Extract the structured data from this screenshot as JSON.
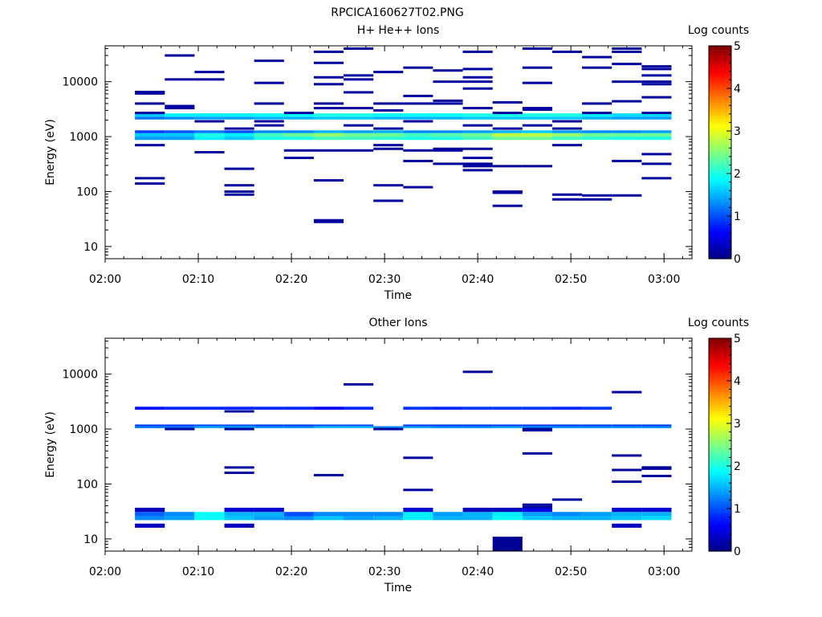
{
  "figure_title": "RPCICA160627T02.PNG",
  "colorbar_ticks": [
    "0",
    "1",
    "2",
    "3",
    "4",
    "5"
  ],
  "chart_data": [
    {
      "type": "heatmap",
      "title": "H+ He++ Ions",
      "xlabel": "Time",
      "ylabel": "Energy (eV)",
      "colorbar_label": "Log counts",
      "color_scale": "jet",
      "clim": [
        0,
        5
      ],
      "xlim": [
        "02:00",
        "03:03"
      ],
      "ylim": [
        6,
        45000
      ],
      "yscale": "log",
      "x_ticks": [
        "02:00",
        "02:10",
        "02:20",
        "02:30",
        "02:40",
        "02:50",
        "03:00"
      ],
      "y_ticks": [
        "10",
        "100",
        "1000",
        "10000"
      ],
      "time_bins": [
        [
          "02:03:12",
          "02:06:24"
        ],
        [
          "02:06:24",
          "02:09:36"
        ],
        [
          "02:09:36",
          "02:12:48"
        ],
        [
          "02:12:48",
          "02:16:00"
        ],
        [
          "02:16:00",
          "02:19:12"
        ],
        [
          "02:19:12",
          "02:22:24"
        ],
        [
          "02:22:24",
          "02:25:36"
        ],
        [
          "02:25:36",
          "02:28:48"
        ],
        [
          "02:28:48",
          "02:32:00"
        ],
        [
          "02:32:00",
          "02:35:12"
        ],
        [
          "02:35:12",
          "02:38:24"
        ],
        [
          "02:38:24",
          "02:41:36"
        ],
        [
          "02:41:36",
          "02:44:48"
        ],
        [
          "02:44:48",
          "02:48:00"
        ],
        [
          "02:48:00",
          "02:51:12"
        ],
        [
          "02:51:12",
          "02:54:24"
        ],
        [
          "02:54:24",
          "02:57:36"
        ],
        [
          "02:57:36",
          "03:00:48"
        ]
      ],
      "bands": [
        {
          "energy_min": 870,
          "energy_max": 1000,
          "values": [
            1.4,
            1.4,
            1.8,
            1.6,
            2.0,
            2.0,
            2.2,
            2.2,
            2.1,
            2.0,
            2.0,
            2.2,
            2.4,
            2.4,
            2.2,
            2.1,
            2.0,
            2.0
          ]
        },
        {
          "energy_min": 1000,
          "energy_max": 1160,
          "values": [
            1.6,
            1.6,
            2.0,
            1.8,
            2.2,
            2.4,
            2.6,
            2.4,
            2.4,
            2.2,
            2.3,
            2.4,
            2.8,
            2.8,
            2.6,
            2.4,
            2.4,
            2.4
          ]
        },
        {
          "energy_min": 1160,
          "energy_max": 1300,
          "values": [
            0.9,
            1.0,
            1.2,
            1.0,
            1.3,
            1.3,
            1.5,
            1.4,
            1.5,
            1.3,
            1.3,
            1.4,
            1.5,
            1.6,
            1.4,
            1.3,
            1.3,
            1.4
          ]
        },
        {
          "energy_min": 2050,
          "energy_max": 2300,
          "values": [
            1.2,
            1.3,
            1.4,
            1.4,
            1.5,
            1.5,
            1.6,
            1.6,
            1.5,
            1.5,
            1.5,
            1.6,
            1.6,
            1.6,
            1.6,
            1.5,
            1.4,
            1.4
          ]
        },
        {
          "energy_min": 2300,
          "energy_max": 2650,
          "values": [
            1.6,
            1.8,
            1.8,
            1.8,
            1.9,
            1.9,
            2.0,
            2.0,
            1.9,
            1.9,
            1.9,
            2.0,
            2.0,
            2.0,
            2.0,
            1.8,
            1.7,
            1.7
          ]
        }
      ],
      "sparse_counts": [
        {
          "energy": 6500,
          "bins": [
            0
          ]
        },
        {
          "energy": 6100,
          "bins": [
            0
          ]
        },
        {
          "energy": 4000,
          "bins": [
            0,
            4,
            6,
            8,
            9,
            10,
            15
          ]
        },
        {
          "energy": 3300,
          "bins": [
            1,
            6,
            7,
            11,
            13
          ]
        },
        {
          "energy": 2700,
          "bins": [
            0,
            5,
            12,
            15,
            17
          ]
        },
        {
          "energy": 1900,
          "bins": [
            2,
            4,
            9,
            14
          ]
        },
        {
          "energy": 1600,
          "bins": [
            4,
            7,
            11,
            13
          ]
        },
        {
          "energy": 1400,
          "bins": [
            3,
            8,
            12,
            14
          ]
        },
        {
          "energy": 700,
          "bins": [
            0,
            8,
            14
          ]
        },
        {
          "energy": 600,
          "bins": [
            8,
            10,
            11
          ]
        },
        {
          "energy": 560,
          "bins": [
            5,
            6,
            7,
            9,
            10
          ]
        },
        {
          "energy": 520,
          "bins": [
            2
          ]
        },
        {
          "energy": 480,
          "bins": [
            17
          ]
        },
        {
          "energy": 410,
          "bins": [
            5,
            11
          ]
        },
        {
          "energy": 360,
          "bins": [
            9,
            16
          ]
        },
        {
          "energy": 320,
          "bins": [
            10,
            11,
            17
          ]
        },
        {
          "energy": 290,
          "bins": [
            11,
            12,
            13
          ]
        },
        {
          "energy": 260,
          "bins": [
            3
          ]
        },
        {
          "energy": 245,
          "bins": [
            11
          ]
        },
        {
          "energy": 175,
          "bins": [
            0,
            17
          ]
        },
        {
          "energy": 160,
          "bins": [
            6
          ]
        },
        {
          "energy": 140,
          "bins": [
            0
          ]
        },
        {
          "energy": 130,
          "bins": [
            3,
            8
          ]
        },
        {
          "energy": 120,
          "bins": [
            9
          ]
        },
        {
          "energy": 100,
          "bins": [
            3,
            12
          ]
        },
        {
          "energy": 95,
          "bins": [
            12
          ]
        },
        {
          "energy": 88,
          "bins": [
            3,
            14
          ]
        },
        {
          "energy": 85,
          "bins": [
            15,
            16
          ]
        },
        {
          "energy": 72,
          "bins": [
            14,
            15
          ]
        },
        {
          "energy": 68,
          "bins": [
            8
          ]
        },
        {
          "energy": 55,
          "bins": [
            12
          ]
        },
        {
          "energy": 30,
          "bins": [
            6
          ]
        },
        {
          "energy": 28,
          "bins": [
            6
          ]
        },
        {
          "energy": 40000,
          "bins": [
            7,
            13,
            16
          ]
        },
        {
          "energy": 35000,
          "bins": [
            6,
            11,
            14,
            16
          ]
        },
        {
          "energy": 30000,
          "bins": [
            1
          ]
        },
        {
          "energy": 28000,
          "bins": [
            15
          ]
        },
        {
          "energy": 24000,
          "bins": [
            4
          ]
        },
        {
          "energy": 22000,
          "bins": [
            6
          ]
        },
        {
          "energy": 21000,
          "bins": [
            16
          ]
        },
        {
          "energy": 19000,
          "bins": [
            17
          ]
        },
        {
          "energy": 18000,
          "bins": [
            9,
            13,
            15
          ]
        },
        {
          "energy": 17000,
          "bins": [
            11,
            17
          ]
        },
        {
          "energy": 16000,
          "bins": [
            10
          ]
        },
        {
          "energy": 15000,
          "bins": [
            2,
            8
          ]
        },
        {
          "energy": 13000,
          "bins": [
            7,
            17
          ]
        },
        {
          "energy": 12000,
          "bins": [
            6,
            11
          ]
        },
        {
          "energy": 11000,
          "bins": [
            1,
            2,
            7
          ]
        },
        {
          "energy": 10000,
          "bins": [
            10,
            11,
            16,
            17
          ]
        },
        {
          "energy": 9500,
          "bins": [
            4,
            13
          ]
        },
        {
          "energy": 9000,
          "bins": [
            6,
            17
          ]
        },
        {
          "energy": 7500,
          "bins": [
            11
          ]
        },
        {
          "energy": 6400,
          "bins": [
            7
          ]
        },
        {
          "energy": 5500,
          "bins": [
            9
          ]
        },
        {
          "energy": 5200,
          "bins": [
            17
          ]
        },
        {
          "energy": 4500,
          "bins": [
            10
          ]
        },
        {
          "energy": 4400,
          "bins": [
            16
          ]
        },
        {
          "energy": 4200,
          "bins": [
            12
          ]
        },
        {
          "energy": 3600,
          "bins": [
            1
          ]
        },
        {
          "energy": 3100,
          "bins": [
            13
          ]
        },
        {
          "energy": 3000,
          "bins": [
            8
          ]
        }
      ]
    },
    {
      "type": "heatmap",
      "title": "Other Ions",
      "xlabel": "Time",
      "ylabel": "Energy (eV)",
      "colorbar_label": "Log counts",
      "color_scale": "jet",
      "clim": [
        0,
        5
      ],
      "xlim": [
        "02:00",
        "03:03"
      ],
      "ylim": [
        6,
        45000
      ],
      "yscale": "log",
      "x_ticks": [
        "02:00",
        "02:10",
        "02:20",
        "02:30",
        "02:40",
        "02:50",
        "03:00"
      ],
      "y_ticks": [
        "10",
        "100",
        "1000",
        "10000"
      ],
      "bands": [
        {
          "energy_min": 1040,
          "energy_max": 1130,
          "values": [
            1.2,
            1.2,
            1.4,
            1.4,
            1.3,
            1.3,
            1.5,
            1.5,
            1.3,
            1.4,
            1.3,
            1.3,
            1.4,
            1.3,
            1.3,
            1.3,
            1.3,
            1.3
          ]
        },
        {
          "energy_min": 1130,
          "energy_max": 1210,
          "values": [
            0.9,
            0.9,
            1.0,
            1.0,
            0.9,
            0.9,
            1.0,
            1.0,
            0.0,
            0.9,
            0.9,
            0.9,
            0.9,
            0.9,
            0.9,
            0.9,
            0.9,
            0.9
          ]
        },
        {
          "energy_min": 2250,
          "energy_max": 2550,
          "values": [
            0.7,
            0.8,
            0.8,
            0.8,
            0.8,
            0.8,
            0.6,
            0.8,
            0.0,
            0.9,
            0.8,
            0.9,
            0.9,
            0.9,
            0.8,
            0.9,
            0.0,
            0.0
          ]
        },
        {
          "energy_min": 22,
          "energy_max": 26,
          "values": [
            1.3,
            1.4,
            1.9,
            1.6,
            1.4,
            1.3,
            1.6,
            1.4,
            1.5,
            1.8,
            1.5,
            1.5,
            1.9,
            1.6,
            1.5,
            1.5,
            1.6,
            1.7
          ]
        },
        {
          "energy_min": 26,
          "energy_max": 31,
          "values": [
            1.1,
            1.3,
            1.9,
            1.5,
            1.5,
            1.0,
            1.3,
            1.3,
            1.3,
            1.8,
            1.4,
            1.5,
            1.8,
            1.4,
            1.3,
            1.4,
            1.5,
            1.5
          ]
        },
        {
          "energy_min": 31,
          "energy_max": 37,
          "values": [
            0.3,
            0.0,
            0.0,
            0.4,
            0.4,
            0.0,
            0.0,
            0.0,
            0.0,
            0.4,
            0.0,
            0.3,
            0.3,
            0.5,
            0.0,
            0.0,
            0.4,
            0.4
          ]
        },
        {
          "energy_min": 16,
          "energy_max": 19,
          "values": [
            0.3,
            0.0,
            0.0,
            0.3,
            0.0,
            0.0,
            0.0,
            0.0,
            0.0,
            0.0,
            0.0,
            0.0,
            0.0,
            0.0,
            0.0,
            0.0,
            0.3,
            0.0
          ]
        }
      ],
      "sparse_counts": [
        {
          "energy": 11000,
          "bins": [
            11
          ]
        },
        {
          "energy": 6500,
          "bins": [
            7
          ]
        },
        {
          "energy": 4700,
          "bins": [
            16
          ]
        },
        {
          "energy": 2100,
          "bins": [
            3
          ]
        },
        {
          "energy": 1000,
          "bins": [
            1,
            3,
            8,
            13
          ]
        },
        {
          "energy": 950,
          "bins": [
            13
          ]
        },
        {
          "energy": 360,
          "bins": [
            13
          ]
        },
        {
          "energy": 330,
          "bins": [
            16
          ]
        },
        {
          "energy": 300,
          "bins": [
            9
          ]
        },
        {
          "energy": 200,
          "bins": [
            3,
            17
          ]
        },
        {
          "energy": 190,
          "bins": [
            17
          ]
        },
        {
          "energy": 180,
          "bins": [
            16
          ]
        },
        {
          "energy": 160,
          "bins": [
            3
          ]
        },
        {
          "energy": 145,
          "bins": [
            6
          ]
        },
        {
          "energy": 140,
          "bins": [
            17
          ]
        },
        {
          "energy": 110,
          "bins": [
            16
          ]
        },
        {
          "energy": 78,
          "bins": [
            9
          ]
        },
        {
          "energy": 52,
          "bins": [
            14
          ]
        },
        {
          "energy": 42,
          "bins": [
            13
          ]
        },
        {
          "energy": 38,
          "bins": [
            13
          ]
        }
      ],
      "blocks": [
        {
          "bin": 12,
          "energy_min": 6,
          "energy_max": 11,
          "value": 0.1
        }
      ]
    }
  ]
}
